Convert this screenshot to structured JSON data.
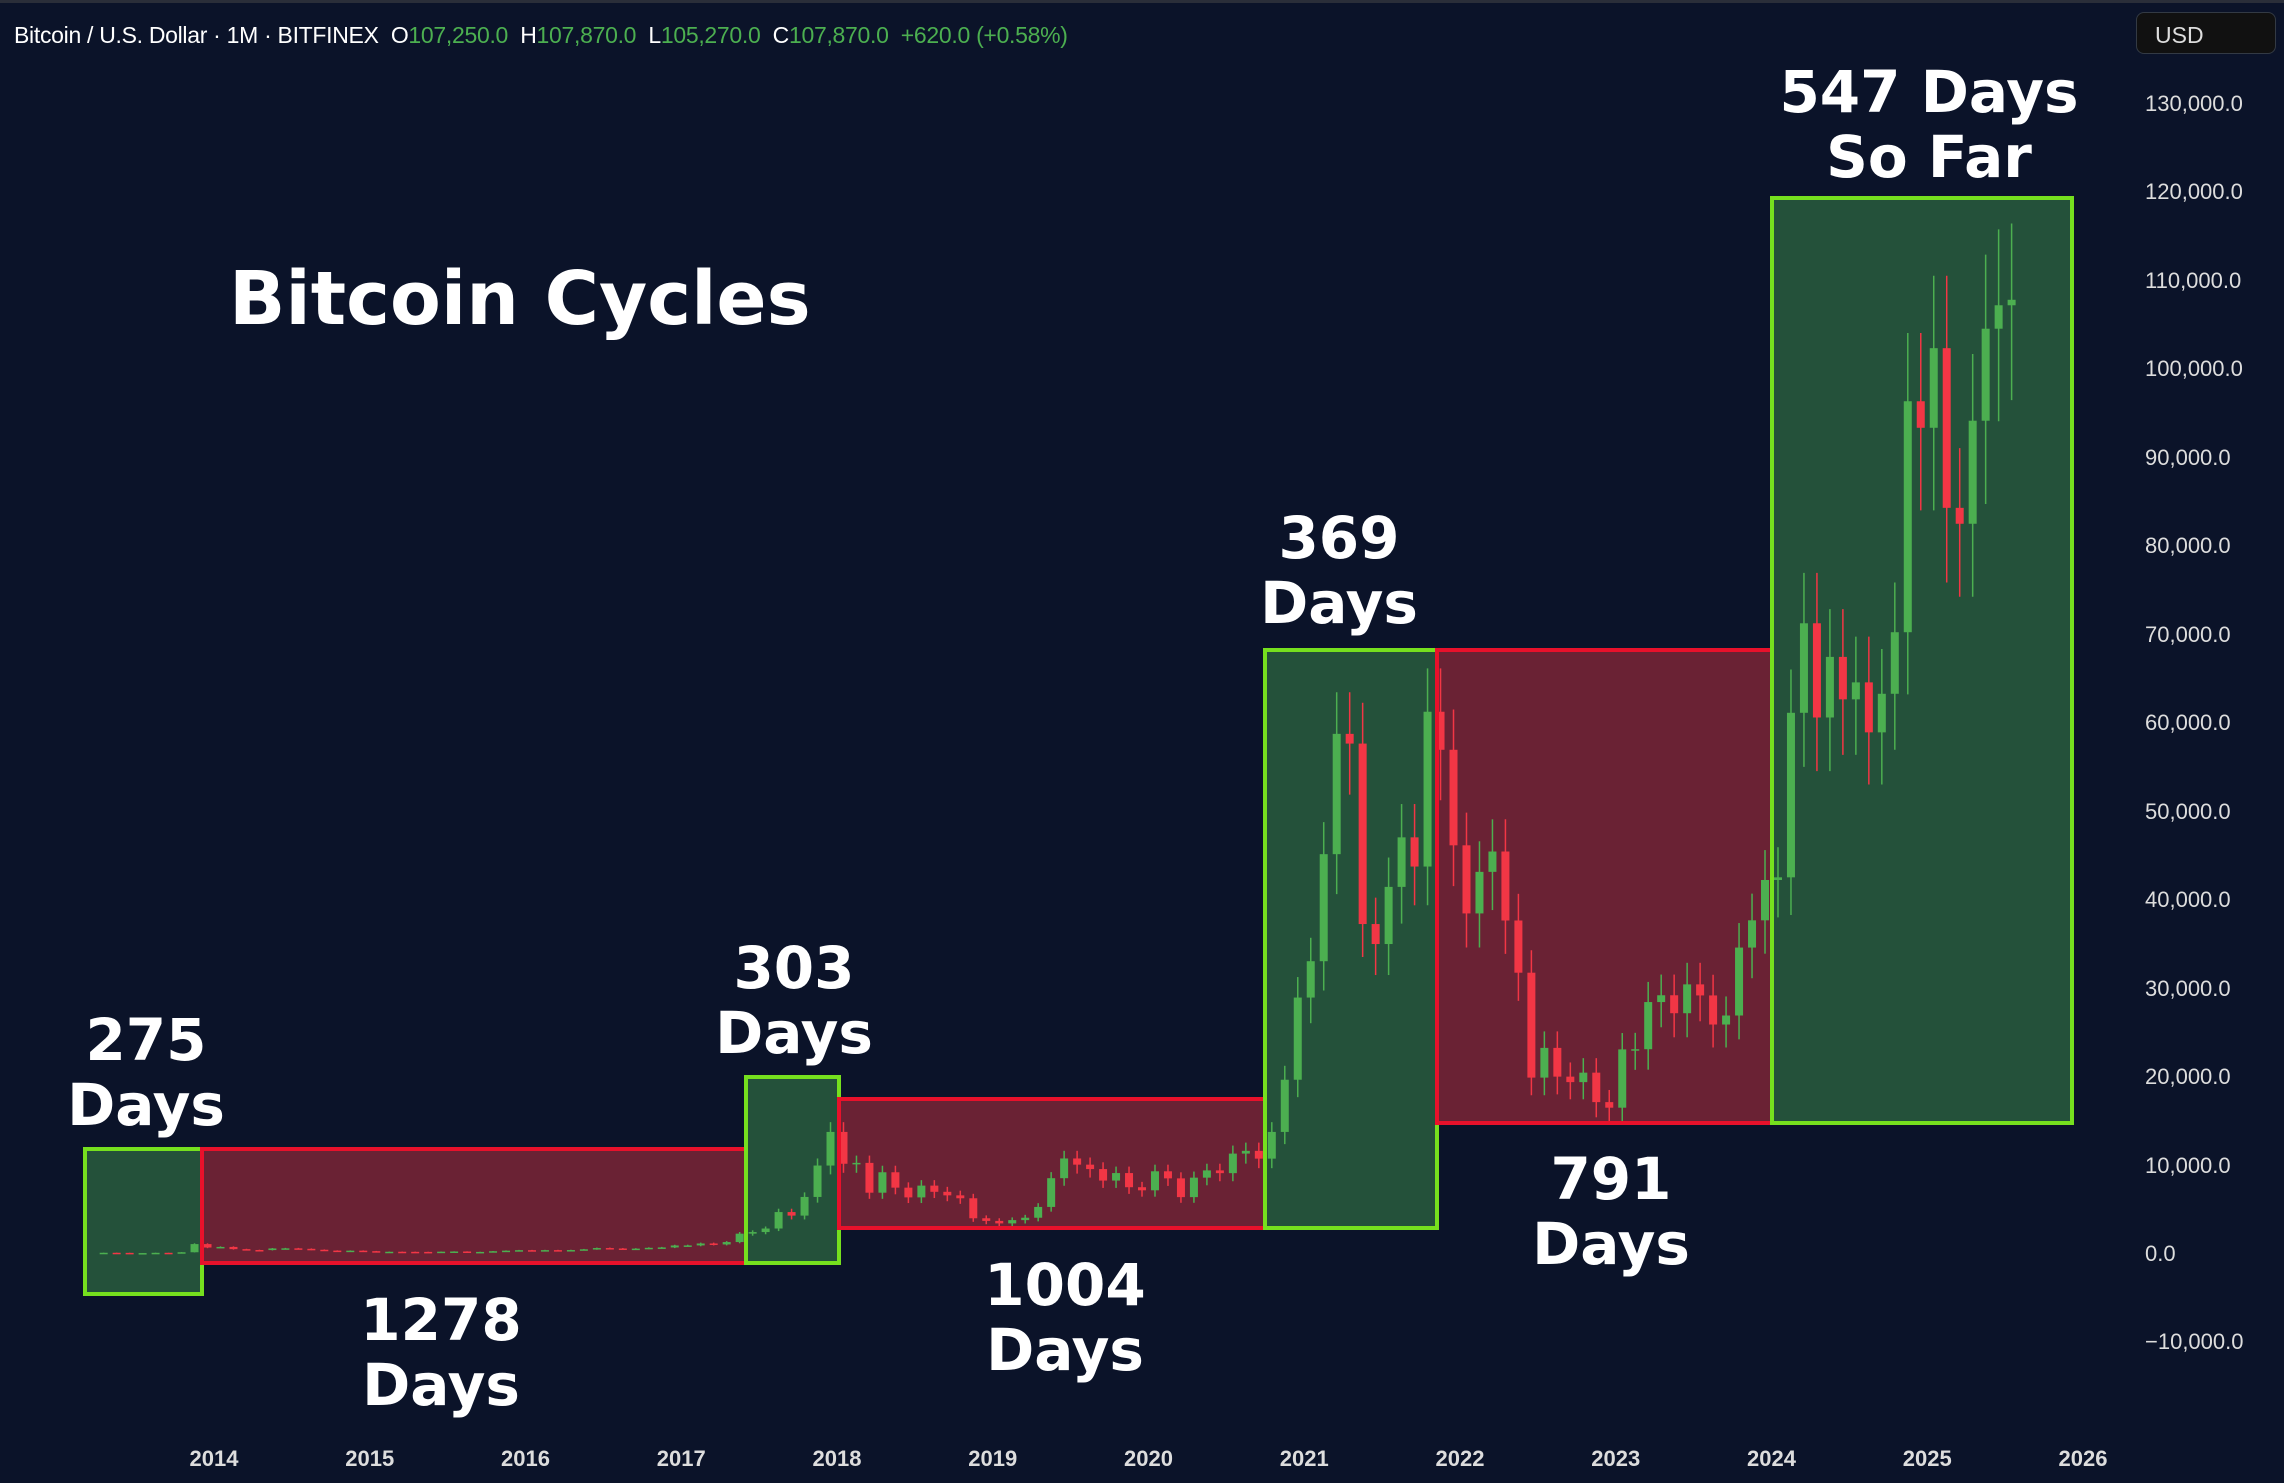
{
  "header": {
    "symbol": "Bitcoin / U.S. Dollar · 1M · BITFINEX",
    "o_label": "O",
    "o": "107,250.0",
    "h_label": "H",
    "h": "107,870.0",
    "l_label": "L",
    "l": "105,270.0",
    "c_label": "C",
    "c": "107,870.0",
    "change": "+620.0 (+0.58%)"
  },
  "currency_button": "USD",
  "colors": {
    "background": "#0b1329",
    "up": "#4caf50",
    "down": "#f23645",
    "bull_box_fill": "#24513a",
    "bull_box_stroke": "#76e01e",
    "bear_box_fill": "#6a2234",
    "bear_box_stroke": "#e8112b"
  },
  "annotations": {
    "title": "Bitcoin Cycles",
    "c1": [
      "275",
      "Days"
    ],
    "c2": [
      "1278",
      "Days"
    ],
    "c3": [
      "303",
      "Days"
    ],
    "c4": [
      "1004",
      "Days"
    ],
    "c5": [
      "369",
      "Days"
    ],
    "c6": [
      "791",
      "Days"
    ],
    "c7": [
      "547 Days",
      "So Far"
    ]
  },
  "chart_data": {
    "type": "candlestick",
    "title": "Bitcoin Cycles",
    "interval": "1M",
    "start_month": "2013-04",
    "closes": [
      139,
      129,
      97,
      106,
      135,
      133,
      198,
      1120,
      732,
      800,
      550,
      450,
      445,
      628,
      640,
      585,
      480,
      386,
      338,
      378,
      320,
      217,
      254,
      244,
      236,
      230,
      263,
      284,
      230,
      236,
      314,
      377,
      430,
      368,
      437,
      416,
      448,
      531,
      673,
      624,
      575,
      609,
      700,
      742,
      966,
      970,
      1190,
      1080,
      1350,
      2300,
      2480,
      2880,
      4740,
      4340,
      6450,
      10000,
      13800,
      10200,
      10300,
      6930,
      9240,
      7500,
      6400,
      7730,
      7030,
      6630,
      6300,
      4040,
      3740,
      3460,
      3830,
      4100,
      5320,
      8570,
      10800,
      10100,
      9600,
      8300,
      9150,
      7550,
      7200,
      9350,
      8550,
      6430,
      8630,
      9450,
      9140,
      11350,
      11660,
      10780,
      13800,
      19700,
      28990,
      33100,
      45200,
      58800,
      57700,
      37300,
      35040,
      41500,
      47100,
      43800,
      61300,
      57000,
      46200,
      38500,
      43200,
      45500,
      37700,
      31800,
      19940,
      23300,
      20050,
      19430,
      20500,
      17170,
      16540,
      23130,
      23150,
      28480,
      29250,
      27220,
      30480,
      29230,
      25940,
      26960,
      34640,
      37720,
      42280,
      42580,
      61180,
      71300,
      60650,
      67500,
      62700,
      64620,
      58970,
      63330,
      70290,
      96400,
      93400,
      102400,
      84350,
      82550,
      94200,
      104600,
      107250,
      107870
    ],
    "y_ticks": [
      "130,000.0",
      "120,000.0",
      "110,000.0",
      "100,000.0",
      "90,000.0",
      "80,000.0",
      "70,000.0",
      "60,000.0",
      "50,000.0",
      "40,000.0",
      "30,000.0",
      "20,000.0",
      "10,000.0",
      "0.0",
      "−10,000.0"
    ],
    "x_ticks": [
      "2014",
      "2015",
      "2016",
      "2017",
      "2018",
      "2019",
      "2020",
      "2021",
      "2022",
      "2023",
      "2024",
      "2025",
      "2026"
    ],
    "ylim": [
      -10000,
      130000
    ],
    "xlim": [
      "2013",
      "2026"
    ],
    "grid": false
  }
}
